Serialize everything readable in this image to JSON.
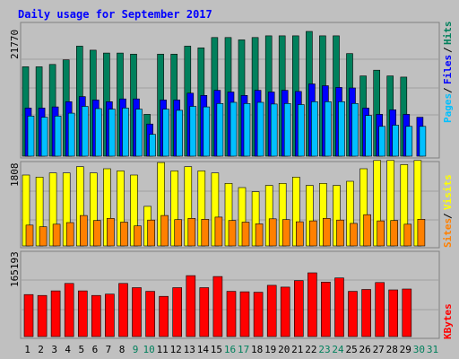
{
  "colors": {
    "background": "#c0c0c0",
    "panel": "#c0c0c0",
    "border": "#808080",
    "title": "#0000ff",
    "hits": "#00805c",
    "files": "#0000ff",
    "pages": "#00c0ff",
    "visits": "#ffff00",
    "sites": "#ff8000",
    "kbytes": "#ff0000",
    "weekend_day": "#00805c",
    "weekday": "#000000"
  },
  "chart_data": {
    "type": "bar",
    "title": "Daily usage for September 2017",
    "categories": [
      "1",
      "2",
      "3",
      "4",
      "5",
      "6",
      "7",
      "8",
      "9",
      "10",
      "11",
      "12",
      "13",
      "14",
      "15",
      "16",
      "17",
      "18",
      "19",
      "20",
      "21",
      "22",
      "23",
      "24",
      "25",
      "26",
      "27",
      "28",
      "29",
      "30",
      "31"
    ],
    "weekend_days": [
      "9",
      "10",
      "16",
      "17",
      "23",
      "24",
      "30",
      "31"
    ],
    "panels": [
      {
        "id": "hits-files-pages",
        "ymax_label": "21770",
        "ymax": 21770,
        "labels": [
          "Pages",
          "Files",
          "Hits"
        ],
        "series": [
          {
            "name": "Hits",
            "values": [
              15600,
              15600,
              16000,
              16800,
              19200,
              18500,
              18000,
              18000,
              17800,
              7300,
              17800,
              17800,
              19200,
              18900,
              20700,
              20700,
              20300,
              20700,
              21000,
              21000,
              21000,
              21770,
              21000,
              21000,
              17900,
              14000,
              15000,
              14000,
              13800,
              0,
              0
            ]
          },
          {
            "name": "Files",
            "values": [
              8400,
              8400,
              8600,
              9500,
              10400,
              9800,
              9500,
              10000,
              10000,
              5600,
              9800,
              9800,
              11000,
              10600,
              11500,
              11200,
              10600,
              11500,
              11200,
              11500,
              11300,
              12600,
              12300,
              12000,
              11900,
              8400,
              7300,
              8100,
              7300,
              6800,
              0
            ]
          },
          {
            "name": "Pages",
            "values": [
              7000,
              6800,
              7000,
              7500,
              8700,
              8300,
              8200,
              8400,
              8200,
              3800,
              8200,
              8000,
              8700,
              8600,
              9200,
              9400,
              9200,
              9400,
              9100,
              9200,
              9000,
              9500,
              9500,
              9500,
              9200,
              7100,
              5200,
              5400,
              5200,
              5200,
              0
            ]
          }
        ]
      },
      {
        "id": "sites-visits",
        "ymax_label": "1808",
        "ymax": 1808,
        "labels": [
          "Sites",
          "Visits"
        ],
        "series": [
          {
            "name": "Visits",
            "values": [
              1700,
              1650,
              1750,
              1750,
              1900,
              1750,
              1850,
              1800,
              1700,
              950,
              2000,
              1800,
              1900,
              1800,
              1750,
              1500,
              1400,
              1300,
              1450,
              1500,
              1650,
              1450,
              1500,
              1450,
              1550,
              1850,
              2050,
              2050,
              1950,
              2050,
              0
            ]
          },
          {
            "name": "Sites",
            "values": [
              500,
              460,
              520,
              560,
              730,
              610,
              660,
              570,
              480,
              620,
              730,
              630,
              660,
              640,
              690,
              610,
              570,
              530,
              650,
              630,
              580,
              600,
              660,
              620,
              540,
              750,
              600,
              610,
              520,
              640,
              0
            ]
          }
        ]
      },
      {
        "id": "kbytes",
        "ymax_label": "165193",
        "ymax": 165193,
        "labels": [
          "KBytes"
        ],
        "series": [
          {
            "name": "KBytes",
            "values": [
              91000,
              89000,
              99000,
              115000,
              99000,
              89000,
              92000,
              115000,
              106000,
              98000,
              87000,
              106000,
              132000,
              106000,
              130000,
              98000,
              97000,
              96000,
              111000,
              107000,
              121000,
              138000,
              118000,
              127000,
              98000,
              102000,
              117000,
              101000,
              103000,
              0,
              0
            ]
          }
        ]
      }
    ]
  }
}
